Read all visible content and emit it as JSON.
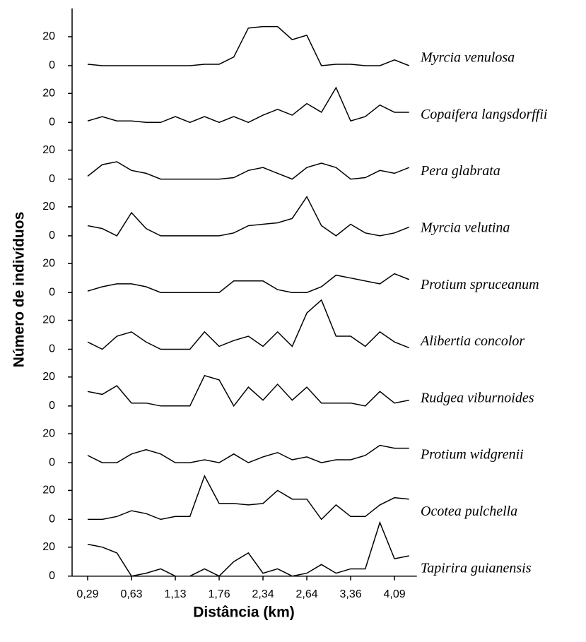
{
  "chart_data": {
    "type": "line",
    "xlabel": "Distância (km)",
    "ylabel": "Número de indivíduos",
    "categories": [
      "0,29",
      null,
      null,
      "0,63",
      null,
      null,
      "1,13",
      null,
      null,
      "1,76",
      null,
      null,
      "2,34",
      null,
      null,
      "2,64",
      null,
      null,
      "3,36",
      null,
      null,
      "4,09",
      null
    ],
    "ylim": [
      0,
      40
    ],
    "yticks": [
      0,
      20
    ],
    "series": [
      {
        "name": "Myrcia venulosa",
        "color": "#000000",
        "values": [
          1,
          0,
          0,
          0,
          0,
          0,
          0,
          0,
          1,
          1,
          6,
          26,
          27,
          27,
          18,
          21,
          0,
          1,
          1,
          0,
          0,
          4,
          0
        ]
      },
      {
        "name": "Copaifera langsdorffii",
        "color": "#000000",
        "values": [
          1,
          4,
          1,
          1,
          0,
          0,
          4,
          0,
          4,
          0,
          4,
          0,
          5,
          9,
          5,
          13,
          7,
          24,
          1,
          4,
          12,
          7,
          7
        ]
      },
      {
        "name": "Pera glabrata",
        "color": "#000000",
        "values": [
          2,
          10,
          12,
          6,
          4,
          0,
          0,
          0,
          0,
          0,
          1,
          6,
          8,
          4,
          0,
          8,
          11,
          8,
          0,
          1,
          6,
          4,
          8
        ]
      },
      {
        "name": "Myrcia velutina",
        "color": "#000000",
        "values": [
          7,
          5,
          0,
          16,
          5,
          0,
          0,
          0,
          0,
          0,
          2,
          7,
          8,
          9,
          12,
          27,
          7,
          0,
          8,
          2,
          0,
          2,
          6
        ]
      },
      {
        "name": "Protium spruceanum",
        "color": "#000000",
        "values": [
          1,
          4,
          6,
          6,
          4,
          0,
          0,
          0,
          0,
          0,
          8,
          8,
          8,
          2,
          0,
          0,
          4,
          12,
          10,
          8,
          6,
          13,
          9
        ]
      },
      {
        "name": "Alibertia concolor",
        "color": "#000000",
        "values": [
          5,
          0,
          9,
          12,
          5,
          0,
          0,
          0,
          12,
          2,
          6,
          9,
          2,
          12,
          2,
          25,
          34,
          9,
          9,
          2,
          12,
          5,
          1
        ]
      },
      {
        "name": "Rudgea viburnoides",
        "color": "#000000",
        "values": [
          10,
          8,
          14,
          2,
          2,
          0,
          0,
          0,
          21,
          18,
          0,
          13,
          4,
          15,
          4,
          13,
          2,
          2,
          2,
          0,
          10,
          2,
          4
        ]
      },
      {
        "name": "Protium widgrenii",
        "color": "#000000",
        "values": [
          5,
          0,
          0,
          6,
          9,
          6,
          0,
          0,
          2,
          0,
          6,
          0,
          4,
          7,
          2,
          4,
          0,
          2,
          2,
          5,
          12,
          10,
          10
        ]
      },
      {
        "name": "Ocotea pulchella",
        "color": "#000000",
        "values": [
          0,
          0,
          2,
          6,
          4,
          0,
          2,
          2,
          30,
          11,
          11,
          10,
          11,
          20,
          14,
          14,
          0,
          10,
          2,
          2,
          10,
          15,
          14
        ]
      },
      {
        "name": "Tapirira guianensis",
        "color": "#000000",
        "values": [
          22,
          20,
          16,
          0,
          2,
          5,
          0,
          0,
          5,
          0,
          10,
          16,
          2,
          5,
          0,
          2,
          8,
          2,
          5,
          5,
          37,
          12,
          14
        ]
      }
    ]
  }
}
